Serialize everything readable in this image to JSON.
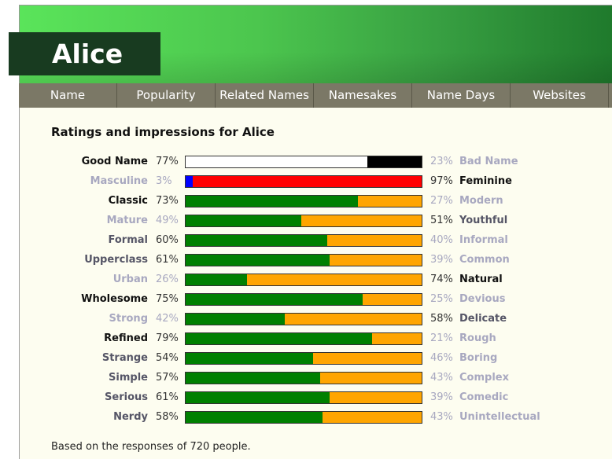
{
  "page": {
    "name": "Alice"
  },
  "tabs": [
    "Name",
    "Popularity",
    "Related Names",
    "Namesakes",
    "Name Days",
    "Websites"
  ],
  "heading": "Ratings and impressions for Alice",
  "colors": {
    "left_default": "#008000",
    "right_default": "#ffa500"
  },
  "ratings": [
    {
      "left": "Good Name",
      "left_pct": "77%",
      "right_pct": "23%",
      "right": "Bad Name",
      "value": 77,
      "left_color": "#ffffff",
      "right_color": "#000000"
    },
    {
      "left": "Masculine",
      "left_pct": "3%",
      "right_pct": "97%",
      "right": "Feminine",
      "value": 3,
      "left_color": "#0000ff",
      "right_color": "#ff0000"
    },
    {
      "left": "Classic",
      "left_pct": "73%",
      "right_pct": "27%",
      "right": "Modern",
      "value": 73
    },
    {
      "left": "Mature",
      "left_pct": "49%",
      "right_pct": "51%",
      "right": "Youthful",
      "value": 49
    },
    {
      "left": "Formal",
      "left_pct": "60%",
      "right_pct": "40%",
      "right": "Informal",
      "value": 60
    },
    {
      "left": "Upperclass",
      "left_pct": "61%",
      "right_pct": "39%",
      "right": "Common",
      "value": 61
    },
    {
      "left": "Urban",
      "left_pct": "26%",
      "right_pct": "74%",
      "right": "Natural",
      "value": 26
    },
    {
      "left": "Wholesome",
      "left_pct": "75%",
      "right_pct": "25%",
      "right": "Devious",
      "value": 75
    },
    {
      "left": "Strong",
      "left_pct": "42%",
      "right_pct": "58%",
      "right": "Delicate",
      "value": 42
    },
    {
      "left": "Refined",
      "left_pct": "79%",
      "right_pct": "21%",
      "right": "Rough",
      "value": 79
    },
    {
      "left": "Strange",
      "left_pct": "54%",
      "right_pct": "46%",
      "right": "Boring",
      "value": 54
    },
    {
      "left": "Simple",
      "left_pct": "57%",
      "right_pct": "43%",
      "right": "Complex",
      "value": 57
    },
    {
      "left": "Serious",
      "left_pct": "61%",
      "right_pct": "39%",
      "right": "Comedic",
      "value": 61
    },
    {
      "left": "Nerdy",
      "left_pct": "58%",
      "right_pct": "43%",
      "right": "Unintellectual",
      "value": 58
    }
  ],
  "footer": "Based on the responses of 720 people."
}
